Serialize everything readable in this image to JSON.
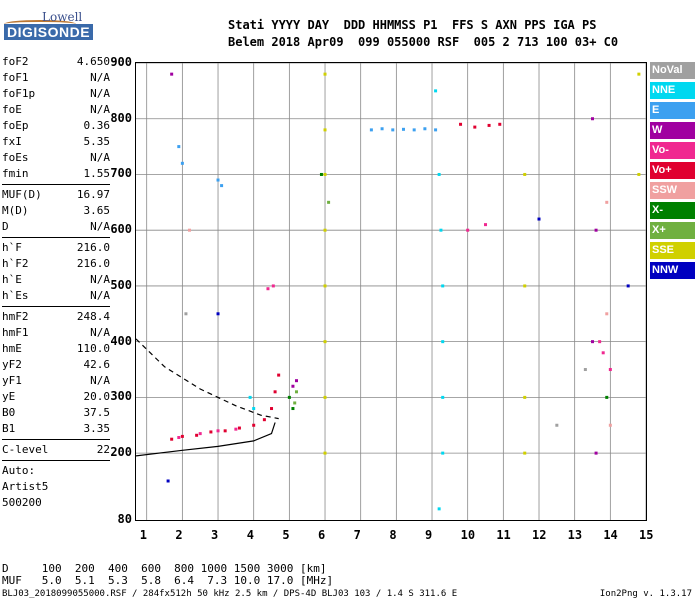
{
  "logo": {
    "brand": "Lowell",
    "name": "DIGISONDE"
  },
  "header": {
    "labels": "Stati YYYY DAY  DDD HHMMSS P1  FFS S AXN PPS IGA PS",
    "values": "Belem 2018 Apr09  099 055000 RSF  005 2 713 100 03+ C0"
  },
  "params": [
    {
      "name": "foF2",
      "value": "4.650"
    },
    {
      "name": "foF1",
      "value": "N/A"
    },
    {
      "name": "foF1p",
      "value": "N/A"
    },
    {
      "name": "foE",
      "value": "N/A"
    },
    {
      "name": "foEp",
      "value": "0.36"
    },
    {
      "name": "fxI",
      "value": "5.35"
    },
    {
      "name": "foEs",
      "value": "N/A"
    },
    {
      "name": "fmin",
      "value": "1.55"
    },
    {
      "name": "MUF(D)",
      "value": "16.97"
    },
    {
      "name": "M(D)",
      "value": "3.65"
    },
    {
      "name": "D",
      "value": "N/A"
    },
    {
      "name": "h`F",
      "value": "216.0"
    },
    {
      "name": "h`F2",
      "value": "216.0"
    },
    {
      "name": "h`E",
      "value": "N/A"
    },
    {
      "name": "h`Es",
      "value": "N/A"
    },
    {
      "name": "hmF2",
      "value": "248.4"
    },
    {
      "name": "hmF1",
      "value": "N/A"
    },
    {
      "name": "hmE",
      "value": "110.0"
    },
    {
      "name": "yF2",
      "value": "42.6"
    },
    {
      "name": "yF1",
      "value": "N/A"
    },
    {
      "name": "yE",
      "value": "20.0"
    },
    {
      "name": "B0",
      "value": "37.5"
    },
    {
      "name": "B1",
      "value": "3.35"
    },
    {
      "name": "C-level",
      "value": "22"
    }
  ],
  "auto": {
    "label": "Auto:",
    "artist": "Artist5",
    "code": "500200"
  },
  "legend": [
    {
      "label": "NoVal",
      "color": "#a0a0a0"
    },
    {
      "label": "NNE",
      "color": "#00d8f0"
    },
    {
      "label": "E",
      "color": "#3ca0f0"
    },
    {
      "label": "W",
      "color": "#a000a0"
    },
    {
      "label": "Vo-",
      "color": "#f02890"
    },
    {
      "label": "Vo+",
      "color": "#e00030"
    },
    {
      "label": "SSW",
      "color": "#f0a0a0"
    },
    {
      "label": "X-",
      "color": "#008000"
    },
    {
      "label": "X+",
      "color": "#70b040"
    },
    {
      "label": "SSE",
      "color": "#d0d000"
    },
    {
      "label": "NNW",
      "color": "#0000c0"
    }
  ],
  "footer": {
    "d_row": "D     100  200  400  600  800 1000 1500 3000 [km]",
    "muf_row": "MUF   5.0  5.1  5.3  5.8  6.4  7.3 10.0 17.0 [MHz]",
    "file": "BLJ03_2018099055000.RSF / 284fx512h 50 kHz 2.5 km / DPS-4D BLJ03 103 / 1.4 S 311.6 E",
    "version": "Ion2Png v. 1.3.17"
  },
  "chart_data": {
    "type": "scatter",
    "title": "",
    "xlabel": "",
    "ylabel": "",
    "xlim": [
      0.7,
      15
    ],
    "ylim": [
      80,
      900
    ],
    "xticks": [
      1,
      2,
      3,
      4,
      5,
      6,
      7,
      8,
      9,
      10,
      11,
      12,
      13,
      14,
      15
    ],
    "yticks": [
      80,
      200,
      300,
      400,
      500,
      600,
      700,
      800,
      900
    ],
    "grid": true,
    "series": [
      {
        "name": "Vo+",
        "color": "#e00030",
        "points": [
          [
            1.7,
            225
          ],
          [
            2.0,
            230
          ],
          [
            2.4,
            232
          ],
          [
            2.8,
            238
          ],
          [
            3.2,
            240
          ],
          [
            3.6,
            245
          ],
          [
            4.0,
            250
          ],
          [
            4.3,
            260
          ],
          [
            4.5,
            280
          ],
          [
            4.6,
            310
          ],
          [
            4.7,
            340
          ],
          [
            9.8,
            790
          ],
          [
            10.2,
            785
          ],
          [
            10.6,
            788
          ],
          [
            10.9,
            790
          ]
        ]
      },
      {
        "name": "Vo-",
        "color": "#f02890",
        "points": [
          [
            1.9,
            228
          ],
          [
            2.5,
            235
          ],
          [
            3.0,
            240
          ],
          [
            3.5,
            243
          ],
          [
            4.4,
            495
          ],
          [
            4.55,
            500
          ],
          [
            10.0,
            600
          ],
          [
            10.5,
            610
          ],
          [
            13.7,
            400
          ],
          [
            13.8,
            380
          ],
          [
            14.0,
            350
          ]
        ]
      },
      {
        "name": "E",
        "color": "#3ca0f0",
        "points": [
          [
            7.3,
            780
          ],
          [
            7.6,
            782
          ],
          [
            7.9,
            780
          ],
          [
            8.2,
            781
          ],
          [
            8.5,
            780
          ],
          [
            8.8,
            782
          ],
          [
            9.1,
            780
          ],
          [
            1.9,
            750
          ],
          [
            2.0,
            720
          ],
          [
            3.0,
            690
          ],
          [
            3.1,
            680
          ]
        ]
      },
      {
        "name": "NNE",
        "color": "#00d8f0",
        "points": [
          [
            9.1,
            850
          ],
          [
            9.2,
            700
          ],
          [
            9.25,
            600
          ],
          [
            9.3,
            500
          ],
          [
            9.3,
            400
          ],
          [
            9.3,
            300
          ],
          [
            9.3,
            200
          ],
          [
            9.2,
            100
          ],
          [
            3.9,
            300
          ],
          [
            4.0,
            280
          ]
        ]
      },
      {
        "name": "SSE",
        "color": "#d0d000",
        "points": [
          [
            6.0,
            880
          ],
          [
            6.0,
            780
          ],
          [
            6.0,
            700
          ],
          [
            6.0,
            600
          ],
          [
            6.0,
            500
          ],
          [
            6.0,
            400
          ],
          [
            6.0,
            300
          ],
          [
            6.0,
            200
          ],
          [
            11.6,
            700
          ],
          [
            11.6,
            500
          ],
          [
            11.6,
            300
          ],
          [
            11.6,
            200
          ],
          [
            14.8,
            880
          ],
          [
            14.8,
            700
          ]
        ]
      },
      {
        "name": "W",
        "color": "#a000a0",
        "points": [
          [
            5.1,
            320
          ],
          [
            5.2,
            330
          ],
          [
            13.5,
            800
          ],
          [
            13.6,
            600
          ],
          [
            13.5,
            400
          ],
          [
            13.6,
            200
          ],
          [
            1.7,
            880
          ]
        ]
      },
      {
        "name": "X-",
        "color": "#008000",
        "points": [
          [
            5.0,
            300
          ],
          [
            5.1,
            280
          ],
          [
            5.9,
            700
          ],
          [
            13.9,
            300
          ]
        ]
      },
      {
        "name": "X+",
        "color": "#70b040",
        "points": [
          [
            5.2,
            310
          ],
          [
            5.15,
            290
          ],
          [
            6.1,
            650
          ]
        ]
      },
      {
        "name": "SSW",
        "color": "#f0a0a0",
        "points": [
          [
            13.9,
            650
          ],
          [
            13.9,
            450
          ],
          [
            14.0,
            250
          ],
          [
            2.2,
            600
          ]
        ]
      },
      {
        "name": "NNW",
        "color": "#0000c0",
        "points": [
          [
            1.6,
            150
          ],
          [
            3.0,
            450
          ],
          [
            14.5,
            500
          ],
          [
            12.0,
            620
          ]
        ]
      },
      {
        "name": "NoVal",
        "color": "#a0a0a0",
        "points": [
          [
            2.1,
            450
          ],
          [
            13.3,
            350
          ],
          [
            12.5,
            250
          ]
        ]
      }
    ],
    "traces": [
      {
        "style": "solid",
        "points": [
          [
            0.7,
            195
          ],
          [
            2.0,
            205
          ],
          [
            3.0,
            212
          ],
          [
            4.0,
            222
          ],
          [
            4.5,
            235
          ],
          [
            4.6,
            255
          ]
        ]
      },
      {
        "style": "dashed",
        "points": [
          [
            0.7,
            405
          ],
          [
            1.5,
            355
          ],
          [
            2.5,
            315
          ],
          [
            3.5,
            285
          ],
          [
            4.2,
            268
          ],
          [
            4.7,
            262
          ]
        ]
      }
    ]
  }
}
